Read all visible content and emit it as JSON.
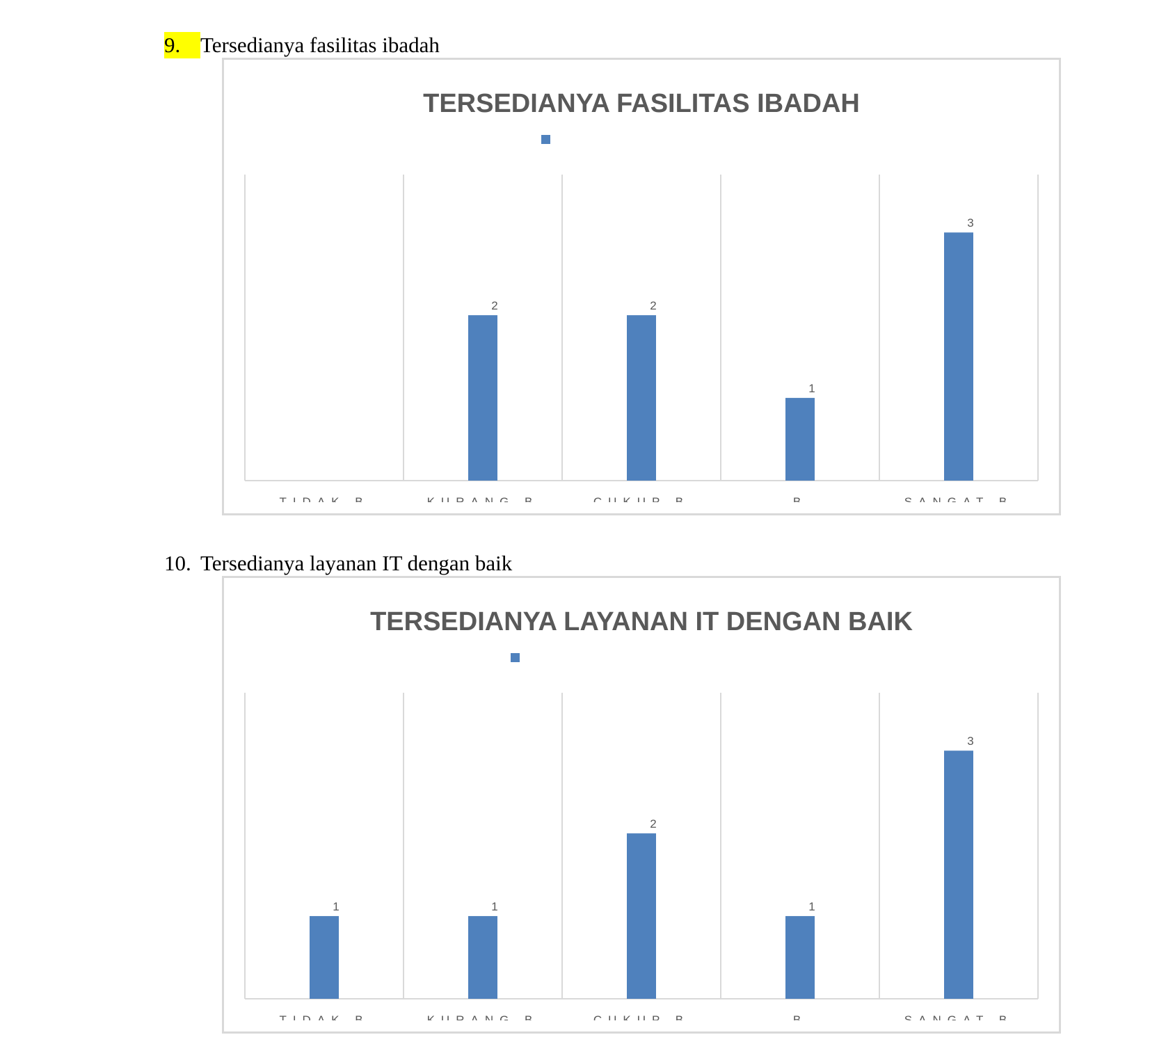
{
  "sections": [
    {
      "number": "9.",
      "heading": "Tersedianya fasilitas ibadah",
      "number_highlighted": true
    },
    {
      "number": "10.",
      "heading": "Tersedianya layanan IT dengan baik",
      "number_highlighted": false
    }
  ],
  "chart_data": [
    {
      "type": "bar",
      "title": "TERSEDIANYA FASILITAS IBADAH",
      "categories": [
        "TIDAK B",
        "KURANG B",
        "CUKUP B",
        "B",
        "SANGAT B"
      ],
      "values": [
        null,
        2,
        2,
        1,
        3
      ],
      "data_labels": [
        "",
        "2",
        "2",
        "1",
        "3"
      ],
      "ylim": [
        0,
        3.7
      ],
      "grid": "vertical",
      "legend": "top-center",
      "bar_color": "#4f81bd"
    },
    {
      "type": "bar",
      "title": "TERSEDIANYA LAYANAN IT DENGAN BAIK",
      "categories": [
        "TIDAK B",
        "KURANG B",
        "CUKUP B",
        "B",
        "SANGAT B"
      ],
      "values": [
        1,
        1,
        2,
        1,
        3
      ],
      "data_labels": [
        "1",
        "1",
        "2",
        "1",
        "3"
      ],
      "ylim": [
        0,
        3.7
      ],
      "grid": "vertical",
      "legend": "top-center",
      "bar_color": "#4f81bd"
    }
  ]
}
